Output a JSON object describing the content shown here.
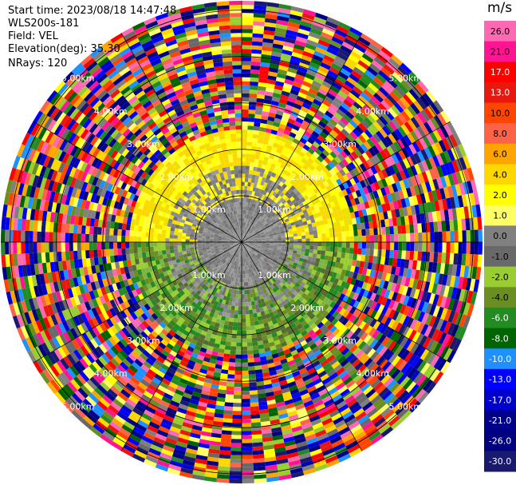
{
  "header": {
    "start_time": "Start time: 2023/08/18 14:47:48",
    "instrument": "WLS200s-181",
    "field": "Field: VEL",
    "elevation": "Elevation(deg): 35.30",
    "nrays": "NRays: 120"
  },
  "colorbar": {
    "unit": "m/s",
    "ticks": [
      "26.0",
      "21.0",
      "17.0",
      "13.0",
      "10.0",
      "8.0",
      "6.0",
      "4.0",
      "2.0",
      "1.0",
      "0.0",
      "-1.0",
      "-2.0",
      "-4.0",
      "-6.0",
      "-8.0",
      "-10.0",
      "-13.0",
      "-17.0",
      "-21.0",
      "-26.0",
      "-30.0"
    ],
    "colors": [
      "#ff69b4",
      "#ff1493",
      "#ff0000",
      "#e8180e",
      "#ff4500",
      "#ff6347",
      "#ffa500",
      "#ffd700",
      "#ffff00",
      "#ffff66",
      "#808080",
      "#696969",
      "#9acd32",
      "#6b8e23",
      "#228b22",
      "#006400",
      "#1e90ff",
      "#0000ff",
      "#0000cd",
      "#00008b",
      "#000080",
      "#191970"
    ]
  },
  "chart_data": {
    "type": "heatmap",
    "title": "",
    "nrays": 120,
    "range_labels": [
      "1.00km",
      "2.00km",
      "3.00km",
      "4.00km",
      "5.00km"
    ]
  }
}
